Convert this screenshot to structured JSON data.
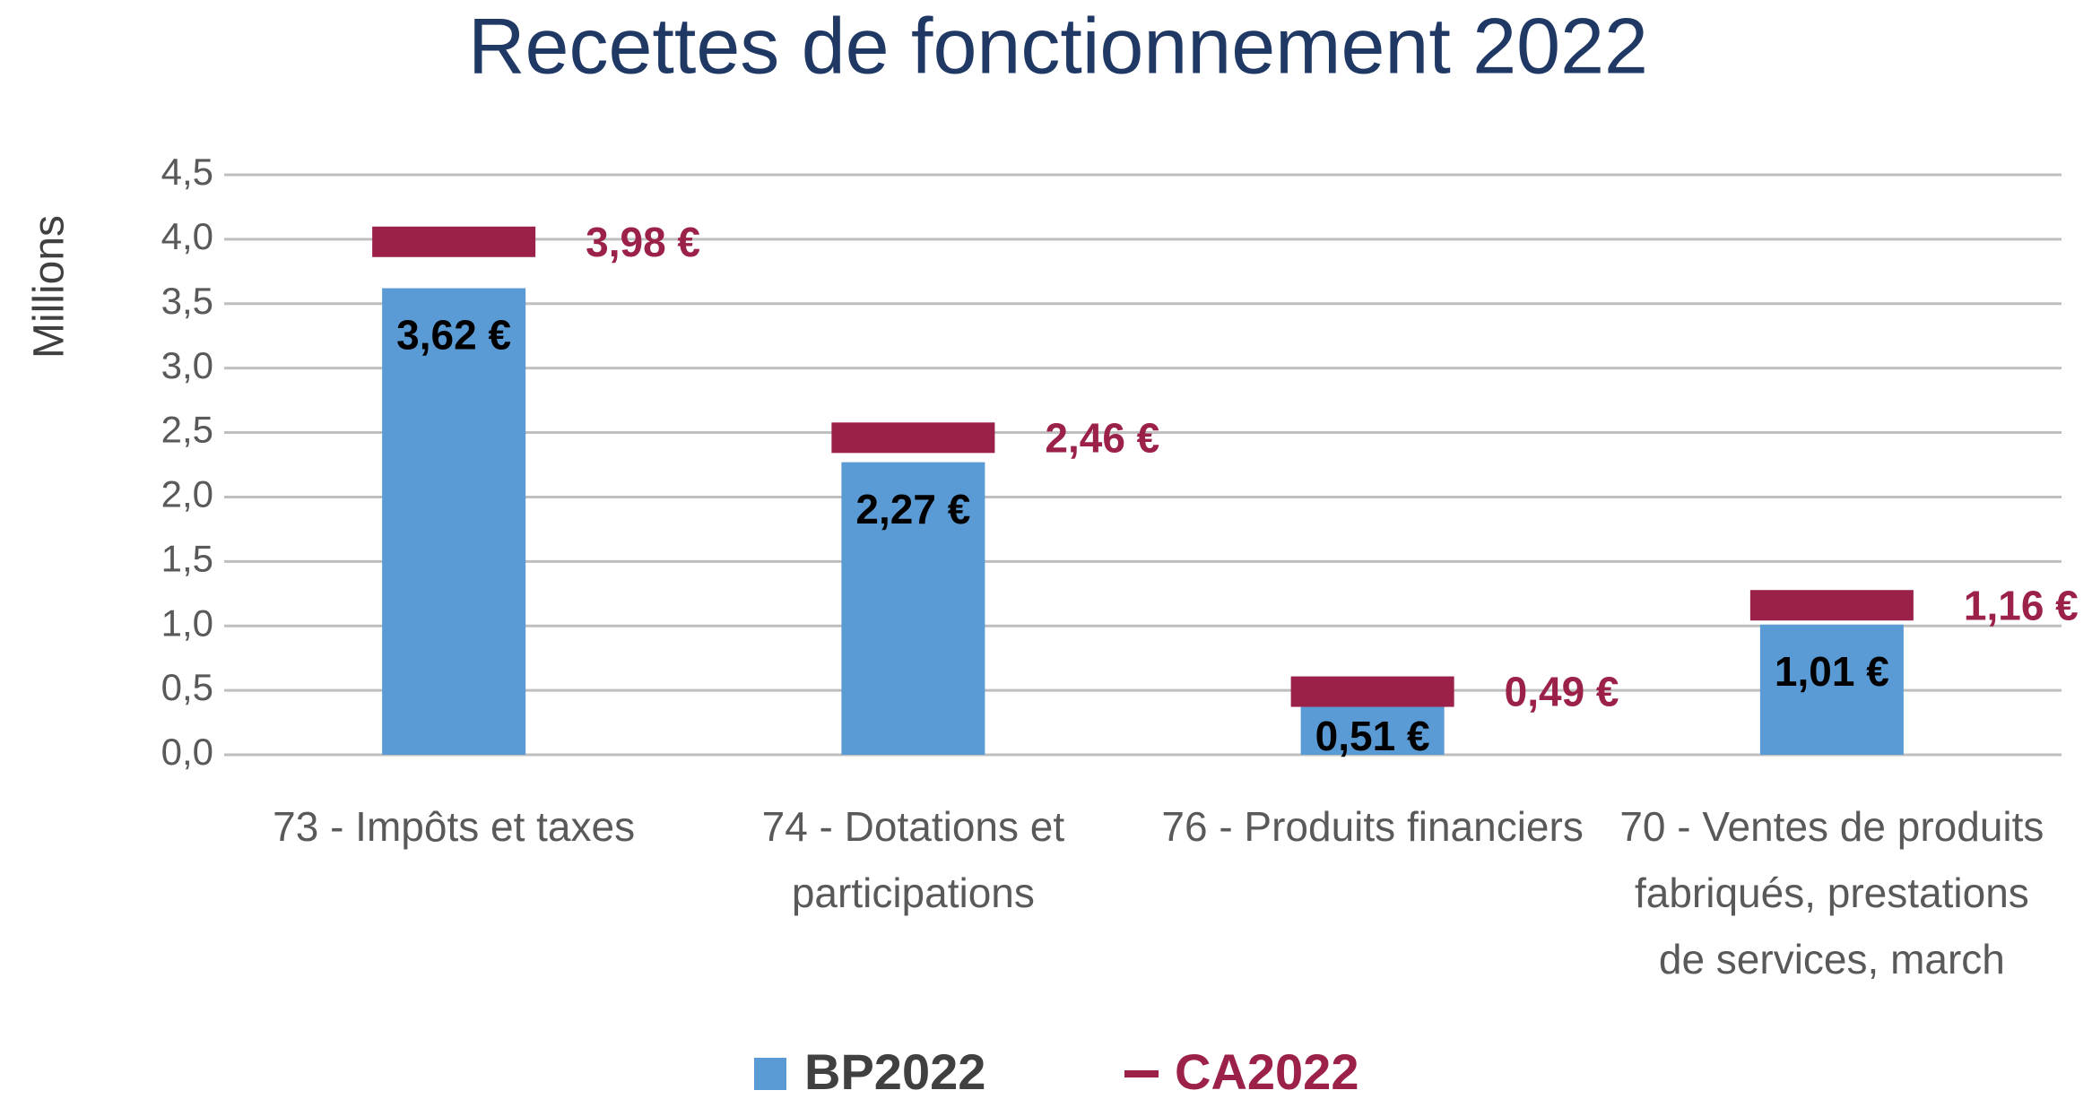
{
  "chart_data": {
    "type": "bar",
    "title": "Recettes de fonctionnement  2022",
    "y_label": "Millions",
    "categories": [
      "73 - Impôts et taxes",
      "74 - Dotations et participations",
      "76 - Produits financiers",
      "70 - Ventes de produits fabriqués, prestations de services, march"
    ],
    "series": [
      {
        "name": "BP2022",
        "color": "#5b9bd5",
        "values": [
          3.62,
          2.27,
          0.51,
          1.01
        ],
        "value_labels": [
          "3,62 €",
          "2,27 €",
          "0,51 €",
          "1,01 €"
        ]
      },
      {
        "name": "CA2022",
        "color": "#9b2148",
        "marker": "dash",
        "values": [
          3.98,
          2.46,
          0.49,
          1.16
        ],
        "value_labels": [
          "3,98 €",
          "2,46 €",
          "0,49 €",
          "1,16 €"
        ]
      }
    ],
    "ylim": [
      0,
      4.5
    ],
    "yticks": [
      {
        "value": 0,
        "label": "0,0"
      },
      {
        "value": 0.5,
        "label": "0,5"
      },
      {
        "value": 1,
        "label": "1,0"
      },
      {
        "value": 1.5,
        "label": "1,5"
      },
      {
        "value": 2,
        "label": "2,0"
      },
      {
        "value": 2.5,
        "label": "2,5"
      },
      {
        "value": 3,
        "label": "3,0"
      },
      {
        "value": 3.5,
        "label": "3,5"
      },
      {
        "value": 4,
        "label": "4,0"
      },
      {
        "value": 4.5,
        "label": "4,5"
      }
    ],
    "grid": true,
    "legend": "bottom"
  }
}
